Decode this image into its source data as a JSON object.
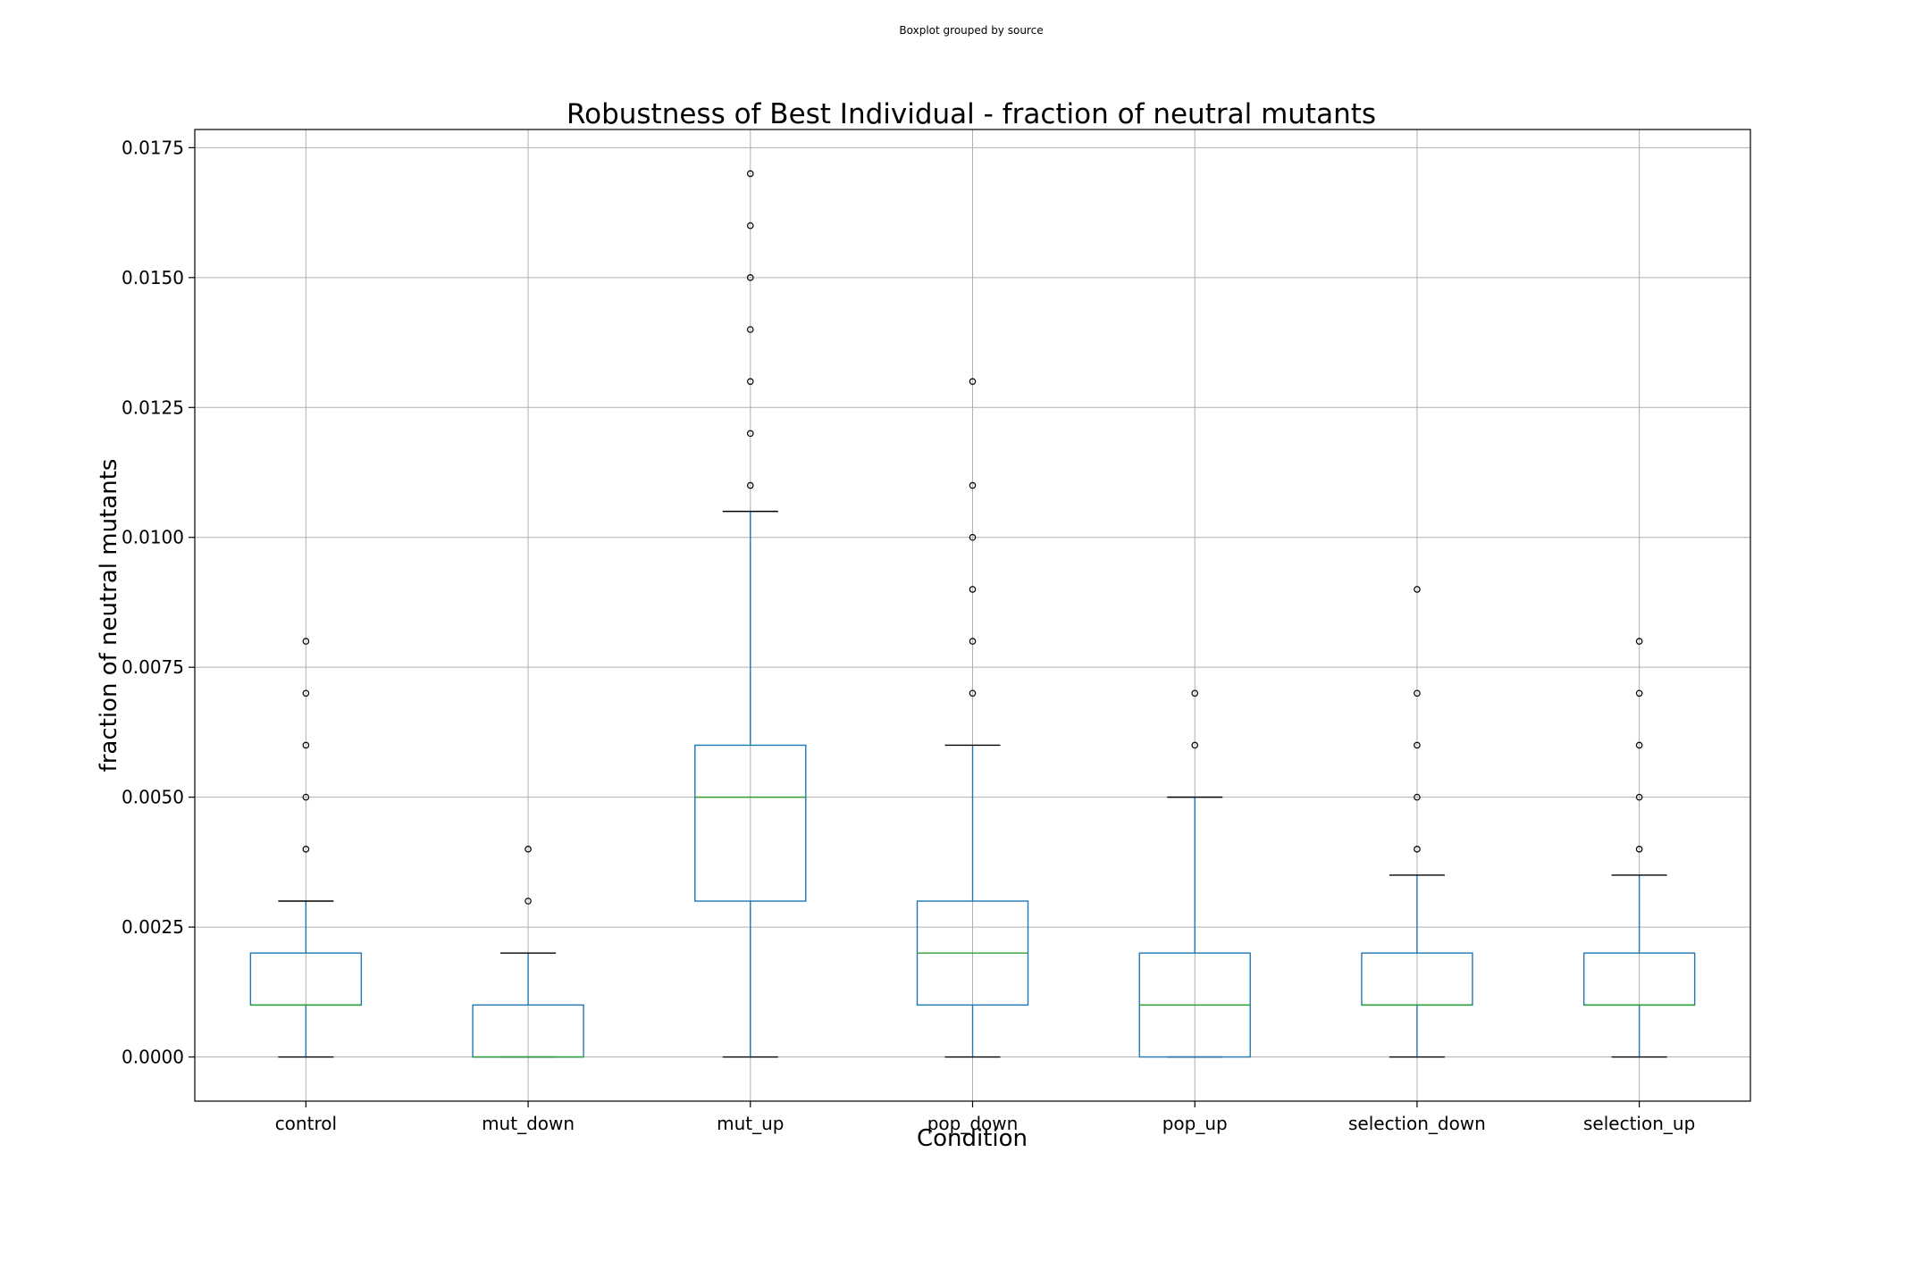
{
  "suptitle": "Boxplot grouped by source",
  "colors": {
    "box": "#1f77b4",
    "median": "#2ca02c",
    "caps": "#000000",
    "fliers": "#000000",
    "grid": "#b0b0b0"
  },
  "chart_data": {
    "type": "boxplot",
    "title": "Robustness of Best Individual - fraction of neutral mutants",
    "xlabel": "Condition",
    "ylabel": "fraction of neutral mutants",
    "ylim": [
      -0.00085,
      0.01785
    ],
    "yticks": [
      0.0,
      0.0025,
      0.005,
      0.0075,
      0.01,
      0.0125,
      0.015,
      0.0175
    ],
    "ytick_labels": [
      "0.0000",
      "0.0025",
      "0.0050",
      "0.0075",
      "0.0100",
      "0.0125",
      "0.0150",
      "0.0175"
    ],
    "grid": true,
    "categories": [
      "control",
      "mut_down",
      "mut_up",
      "pop_down",
      "pop_up",
      "selection_down",
      "selection_up"
    ],
    "boxes": [
      {
        "name": "control",
        "whislo": 0.0,
        "q1": 0.001,
        "median": 0.001,
        "q3": 0.002,
        "whishi": 0.003,
        "fliers": [
          0.004,
          0.005,
          0.006,
          0.007,
          0.008
        ]
      },
      {
        "name": "mut_down",
        "whislo": 0.0,
        "q1": 0.0,
        "median": 0.0,
        "q3": 0.001,
        "whishi": 0.002,
        "fliers": [
          0.003,
          0.004
        ]
      },
      {
        "name": "mut_up",
        "whislo": 0.0,
        "q1": 0.003,
        "median": 0.005,
        "q3": 0.006,
        "whishi": 0.0105,
        "fliers": [
          0.011,
          0.012,
          0.013,
          0.014,
          0.015,
          0.016,
          0.017
        ]
      },
      {
        "name": "pop_down",
        "whislo": 0.0,
        "q1": 0.001,
        "median": 0.002,
        "q3": 0.003,
        "whishi": 0.006,
        "fliers": [
          0.007,
          0.008,
          0.009,
          0.01,
          0.011,
          0.013
        ]
      },
      {
        "name": "pop_up",
        "whislo": 0.0,
        "q1": 0.0,
        "median": 0.001,
        "q3": 0.002,
        "whishi": 0.005,
        "fliers": [
          0.006,
          0.007
        ]
      },
      {
        "name": "selection_down",
        "whislo": 0.0,
        "q1": 0.001,
        "median": 0.001,
        "q3": 0.002,
        "whishi": 0.0035,
        "fliers": [
          0.004,
          0.005,
          0.006,
          0.007,
          0.009
        ]
      },
      {
        "name": "selection_up",
        "whislo": 0.0,
        "q1": 0.001,
        "median": 0.001,
        "q3": 0.002,
        "whishi": 0.0035,
        "fliers": [
          0.004,
          0.005,
          0.006,
          0.007,
          0.008
        ]
      }
    ]
  }
}
